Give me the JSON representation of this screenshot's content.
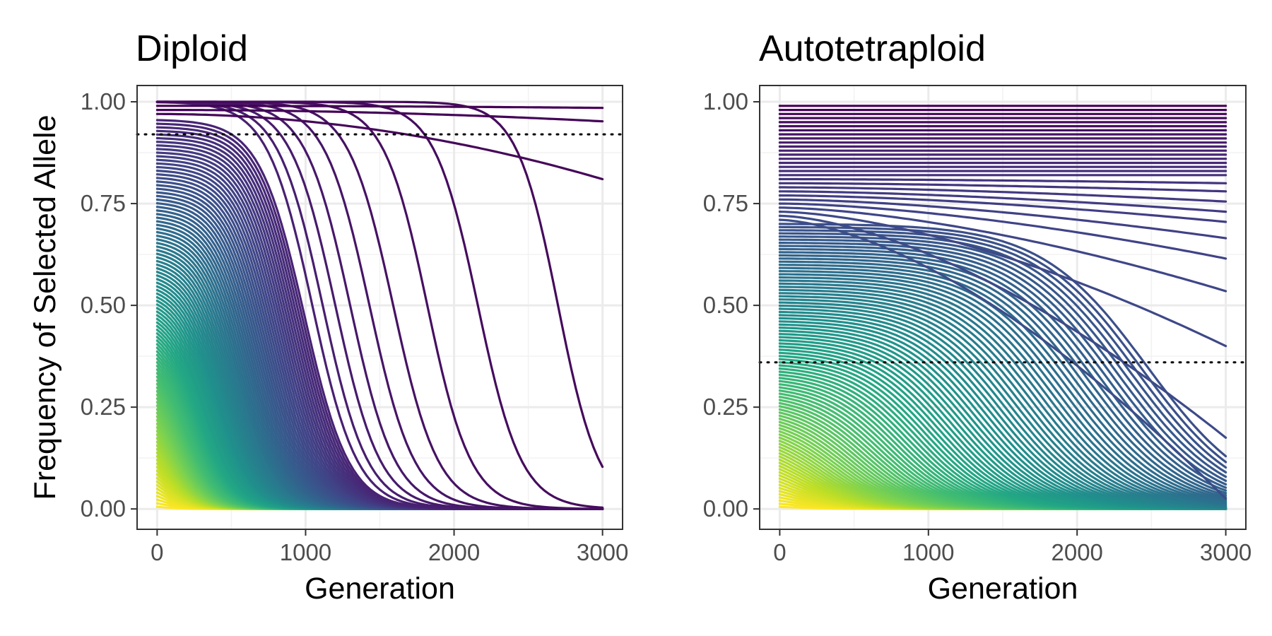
{
  "chart_data": [
    {
      "type": "line",
      "title": "Diploid",
      "xlabel": "Generation",
      "ylabel": "Frequency of Selected Allele",
      "xlim": [
        -135,
        3135
      ],
      "ylim": [
        -0.05,
        1.04
      ],
      "x_ticks": [
        0,
        1000,
        2000,
        3000
      ],
      "x_tick_labels": [
        "0",
        "1000",
        "2000",
        "3000"
      ],
      "y_ticks": [
        0,
        0.25,
        0.5,
        0.75,
        1
      ],
      "y_tick_labels": [
        "0.00",
        "0.25",
        "0.50",
        "0.75",
        "1.00"
      ],
      "grid": true,
      "legend": "none",
      "threshold_line": {
        "y": 0.92,
        "style": "dotted",
        "color": "#000000"
      },
      "palette": "viridis",
      "series_count": 120,
      "curves": [
        {
          "x_mid": 2700,
          "k": 0.0072
        },
        {
          "x_mid": 2160,
          "k": 0.0068
        },
        {
          "x_mid": 1820,
          "k": 0.0068
        },
        {
          "x_mid": 1590,
          "k": 0.0066
        },
        {
          "x_mid": 1430,
          "k": 0.0066
        },
        {
          "x_mid": 1300,
          "k": 0.0066
        },
        {
          "x_mid": 1200,
          "k": 0.0066
        },
        {
          "x_mid": 1115,
          "k": 0.0066
        },
        {
          "x_mid": 1045,
          "k": 0.0066
        }
      ],
      "near_one_curves": [
        {
          "y_start": 0.99,
          "y_end": 0.985
        },
        {
          "y_start": 0.98,
          "y_end": 0.952
        },
        {
          "y_start": 0.97,
          "y_end": 0.81
        }
      ],
      "series_note": "120 allele-frequency trajectories, starting frequencies 0.99 down to 0.01, colored dark purple to yellow"
    },
    {
      "type": "line",
      "title": "Autotetraploid",
      "xlabel": "Generation",
      "xlim": [
        -135,
        3135
      ],
      "ylim": [
        -0.05,
        1.04
      ],
      "x_ticks": [
        0,
        1000,
        2000,
        3000
      ],
      "x_tick_labels": [
        "0",
        "1000",
        "2000",
        "3000"
      ],
      "y_ticks": [
        0,
        0.25,
        0.5,
        0.75,
        1
      ],
      "y_tick_labels": [
        "0.00",
        "0.25",
        "0.50",
        "0.75",
        "1.00"
      ],
      "grid": true,
      "legend": "none",
      "threshold_line": {
        "y": 0.36,
        "style": "dotted",
        "color": "#000000"
      },
      "palette": "viridis",
      "series_count": 120,
      "end_values": [
        0.99,
        0.98,
        0.97,
        0.96,
        0.95,
        0.94,
        0.93,
        0.92,
        0.91,
        0.9,
        0.89,
        0.88,
        0.87,
        0.86,
        0.85,
        0.84,
        0.83,
        0.82,
        0.8,
        0.78,
        0.755,
        0.73,
        0.705,
        0.665,
        0.615,
        0.535,
        0.4,
        0.175,
        0.025
      ],
      "series_note": "120 allele-frequency trajectories, starting frequencies 0.99 down to 0.01, colored dark purple to yellow"
    }
  ]
}
